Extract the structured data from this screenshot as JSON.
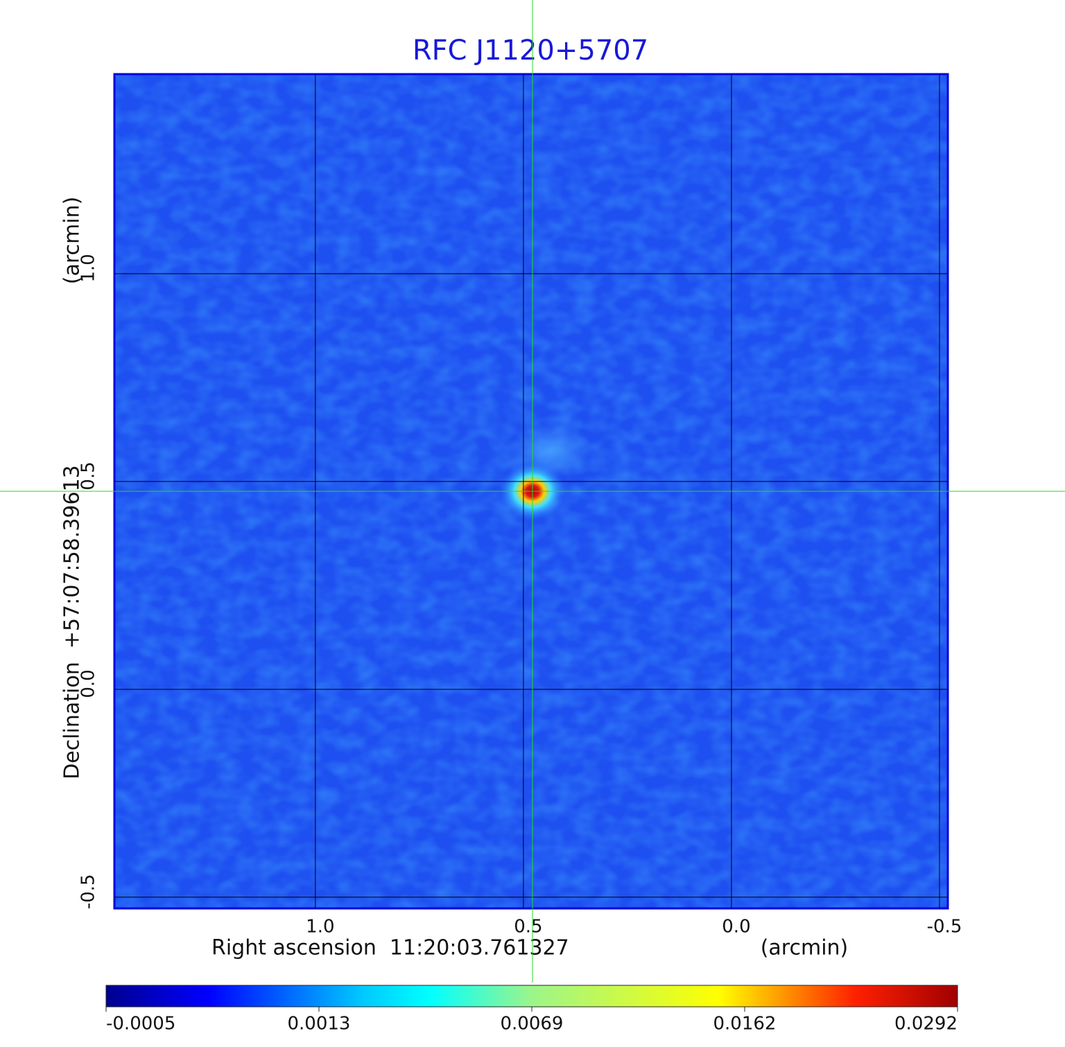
{
  "chart_data": {
    "type": "image",
    "title": "RFC J1120+5707",
    "x_label": "Right ascension  11:20:03.761327",
    "x_unit": "(arcmin)",
    "y_label": "Declination  +57:07:58.39613",
    "y_unit": "(arcmin)",
    "xlim": [
      1.483,
      -0.52
    ],
    "ylim": [
      -0.527,
      1.48
    ],
    "xticks": [
      {
        "value": 1,
        "label": "1.0"
      },
      0.5,
      {
        "value": 0,
        "label": "0.0"
      },
      -0.5
    ],
    "yticks": [
      {
        "value": -0.5,
        "label": "-0.5"
      },
      {
        "value": 0,
        "label": "0.0"
      },
      0.5,
      {
        "value": 1,
        "label": "1.0"
      }
    ],
    "grid": true,
    "grid_color": "#000000",
    "crosshair_color": "#22dd22",
    "colorbar_ticks": [
      -0.0005,
      0.0013,
      0.0069,
      0.0162,
      0.0292
    ]
  }
}
